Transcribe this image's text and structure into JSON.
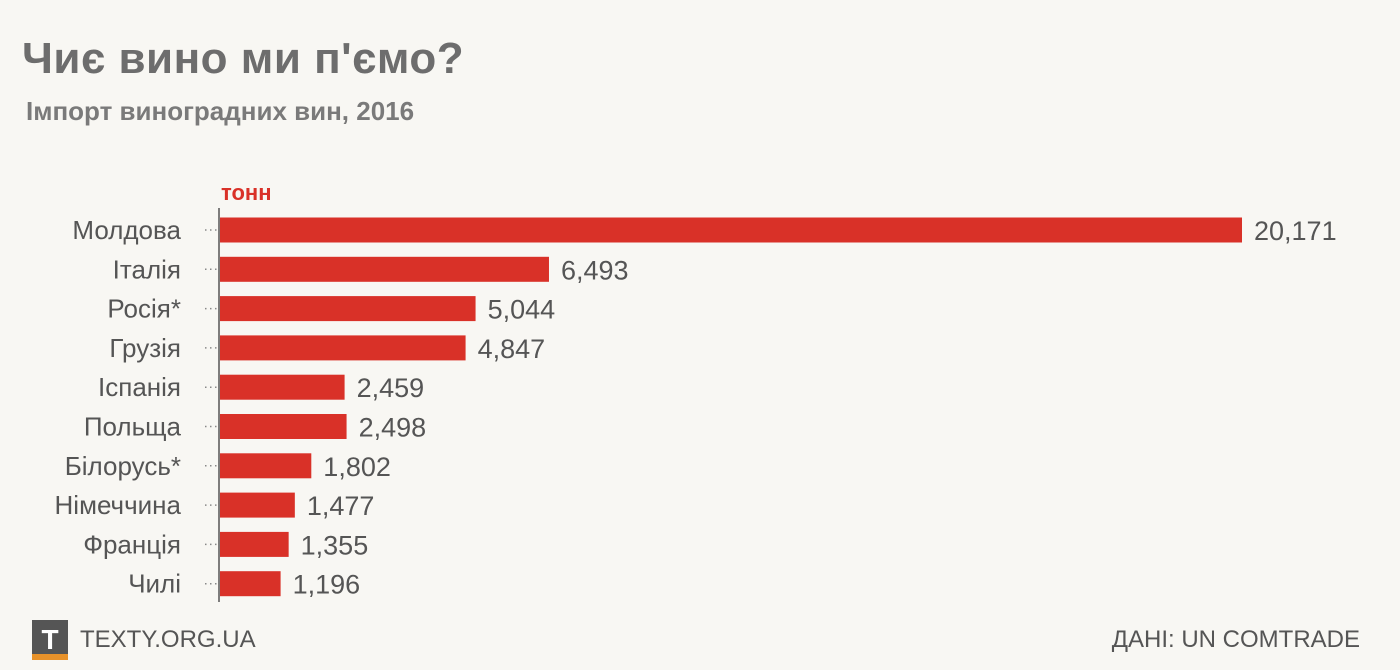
{
  "header": {
    "title": "Чиє вино ми п'ємо?",
    "subtitle": "Імпорт виноградних вин, 2016"
  },
  "colors": {
    "bar": "#d93128",
    "text": "#555555",
    "axis": "#555555",
    "accent": "#e8922a"
  },
  "chart_data": {
    "type": "bar",
    "orientation": "horizontal",
    "unit_label": "тонн",
    "categories": [
      "Молдова",
      "Італія",
      "Росія*",
      "Грузія",
      "Іспанія",
      "Польща",
      "Білорусь*",
      "Німеччина",
      "Франція",
      "Чилі"
    ],
    "values": [
      20171,
      6493,
      5044,
      4847,
      2459,
      2498,
      1802,
      1477,
      1355,
      1196
    ],
    "value_labels": [
      "20,171",
      "6,493",
      "5,044",
      "4,847",
      "2,459",
      "2,498",
      "1,802",
      "1,477",
      "1,355",
      "1,196"
    ],
    "xlim": [
      0,
      20171
    ],
    "grid": false
  },
  "footer": {
    "logo_letter": "T",
    "site": "TEXTY.ORG.UA",
    "source": "ДАНІ: UN COMTRADE"
  }
}
